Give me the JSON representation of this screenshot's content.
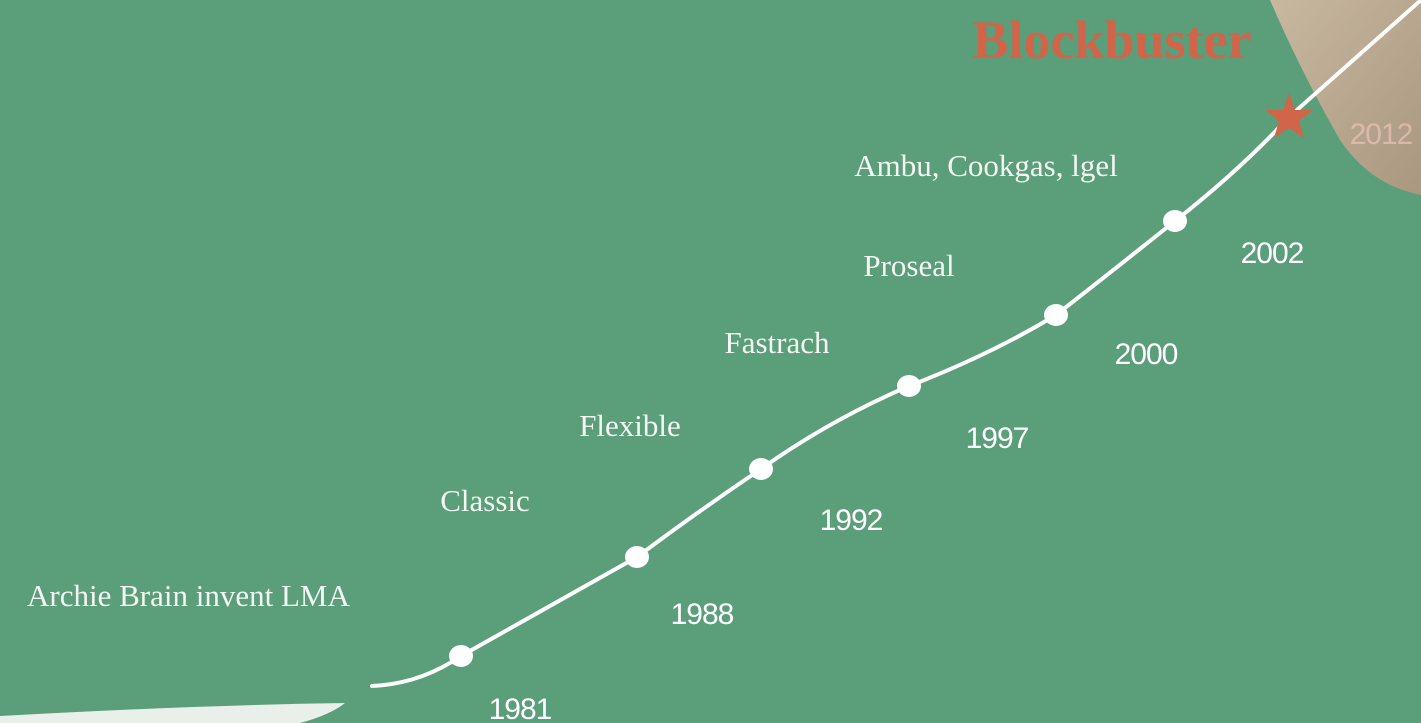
{
  "title": "Blockbuster",
  "milestones": [
    {
      "label": "Archie Brain invent LMA",
      "year": "1981"
    },
    {
      "label": "Classic",
      "year": "1988"
    },
    {
      "label": "Flexible",
      "year": "1992"
    },
    {
      "label": "Fastrach",
      "year": "1997"
    },
    {
      "label": "Proseal",
      "year": "2000"
    },
    {
      "label": "Ambu, Cookgas, lgel",
      "year": "2002"
    }
  ],
  "final_year": "2012"
}
